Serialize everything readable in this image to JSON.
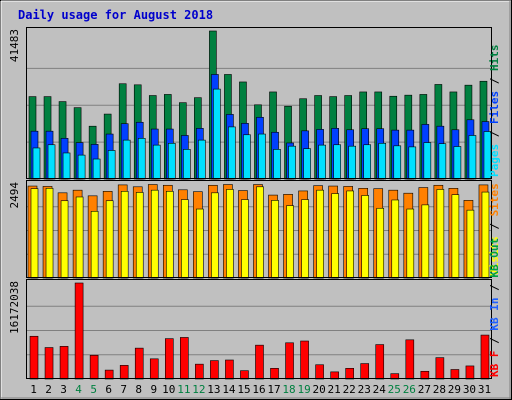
{
  "chart_data": {
    "type": "bar",
    "title": "Daily usage for August 2018",
    "colors": {
      "background": "#ffffff",
      "frame": "#c0c0c0",
      "panel": "#c0c0c0",
      "title": "#0000cc",
      "hits": "#008040",
      "files": "#0040ff",
      "pages": "#00e0ff",
      "visits": "#ffff00",
      "sites": "#ff8000",
      "kbout": "#00a040",
      "kbin": "#2060ff",
      "kbf": "#ff0000",
      "weekend": "#008040",
      "weekday": "#000000"
    },
    "categories": [
      "1",
      "2",
      "3",
      "4",
      "5",
      "6",
      "7",
      "8",
      "9",
      "10",
      "11",
      "12",
      "13",
      "14",
      "15",
      "16",
      "17",
      "18",
      "19",
      "20",
      "21",
      "22",
      "23",
      "24",
      "25",
      "26",
      "27",
      "28",
      "29",
      "30",
      "31"
    ],
    "weekend_days": [
      "4",
      "5",
      "11",
      "12",
      "18",
      "19",
      "25",
      "26"
    ],
    "panels": [
      {
        "id": "top",
        "max_label": "41483",
        "legend": [
          {
            "text": "Pages",
            "color": "#00e0ff"
          },
          {
            "text": " / ",
            "color": "#000000"
          },
          {
            "text": "Files",
            "color": "#0040ff"
          },
          {
            "text": " / ",
            "color": "#000000"
          },
          {
            "text": "Hits",
            "color": "#008040"
          }
        ],
        "ylim": [
          0,
          41483
        ],
        "series": [
          {
            "name": "Hits",
            "values": [
              23100,
              23100,
              21700,
              20000,
              14800,
              18200,
              26700,
              26400,
              23400,
              23700,
              21400,
              22800,
              41483,
              29300,
              27200,
              20800,
              24400,
              20400,
              22500,
              23400,
              23100,
              23400,
              24400,
              24400,
              23200,
              23500,
              23700,
              26500,
              24400,
              26300,
              27400
            ]
          },
          {
            "name": "Files",
            "values": [
              13400,
              13400,
              11400,
              10200,
              9700,
              12600,
              15500,
              15900,
              14000,
              14000,
              12200,
              14200,
              29300,
              18100,
              15600,
              17300,
              13100,
              10100,
              13500,
              13900,
              14200,
              13800,
              14100,
              14100,
              13700,
              13700,
              15300,
              14800,
              13800,
              16600,
              16100
            ]
          },
          {
            "name": "Pages",
            "values": [
              8700,
              9600,
              7300,
              6700,
              5600,
              8000,
              10900,
              11400,
              9500,
              10000,
              8300,
              10900,
              25200,
              14600,
              12400,
              12600,
              8300,
              9200,
              8500,
              9500,
              9600,
              9200,
              9600,
              10000,
              9300,
              9000,
              10200,
              9900,
              9100,
              12200,
              13300
            ]
          }
        ]
      },
      {
        "id": "middle",
        "max_label": "2494",
        "legend": [
          {
            "text": "Visits",
            "color": "#ffff00"
          },
          {
            "text": " / ",
            "color": "#000000"
          },
          {
            "text": "Sites",
            "color": "#ff8000"
          }
        ],
        "ylim": [
          0,
          2494
        ],
        "series": [
          {
            "name": "Sites",
            "values": [
              2440,
              2430,
              2260,
              2330,
              2180,
              2300,
              2470,
              2420,
              2480,
              2460,
              2340,
              2290,
              2460,
              2480,
              2320,
              2480,
              2200,
              2220,
              2310,
              2450,
              2440,
              2430,
              2380,
              2370,
              2330,
              2250,
              2400,
              2460,
              2380,
              2060,
              2470
            ]
          },
          {
            "name": "Visits",
            "values": [
              2370,
              2380,
              2050,
              2150,
              1770,
              2050,
              2300,
              2270,
              2330,
              2300,
              2080,
              1830,
              2260,
              2350,
              2080,
              2420,
              2060,
              1920,
              2080,
              2330,
              2240,
              2310,
              2190,
              1850,
              2070,
              1830,
              1940,
              2350,
              2210,
              1800,
              2280
            ]
          }
        ]
      },
      {
        "id": "bottom",
        "max_label": "16172038",
        "legend": [
          {
            "text": "KB F",
            "color": "#ff0000"
          },
          {
            "text": " / ",
            "color": "#000000"
          },
          {
            "text": "KB In",
            "color": "#2060ff"
          },
          {
            "text": " / ",
            "color": "#000000"
          },
          {
            "text": "KB Out",
            "color": "#00a040"
          }
        ],
        "ylim": [
          0,
          16172038
        ],
        "series": [
          {
            "name": "KB F",
            "values": [
              7200000,
              5300000,
              5500000,
              16172000,
              4000000,
              1500000,
              2300000,
              5200000,
              3400000,
              6800000,
              7000000,
              2500000,
              3100000,
              3200000,
              1400000,
              5700000,
              1800000,
              6100000,
              6400000,
              2400000,
              1200000,
              1800000,
              2600000,
              5800000,
              900000,
              6600000,
              1300000,
              3600000,
              1600000,
              2200000,
              7400000
            ]
          }
        ]
      }
    ]
  }
}
